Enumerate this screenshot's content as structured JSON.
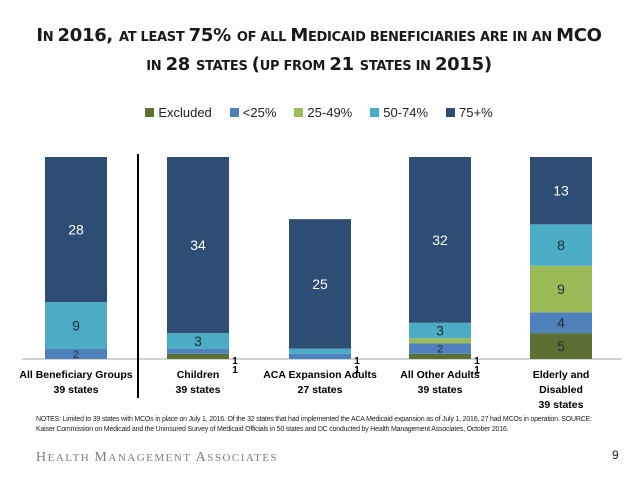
{
  "title": {
    "line1": [
      {
        "t": "I",
        "big": true
      },
      {
        "t": "N ",
        "big": false
      },
      {
        "t": "2016, ",
        "big": true
      },
      {
        "t": "AT LEAST ",
        "big": false
      },
      {
        "t": "75% ",
        "big": true
      },
      {
        "t": "OF ALL ",
        "big": false
      },
      {
        "t": "M",
        "big": true
      },
      {
        "t": "EDICAID BENEFICIARIES ARE IN AN ",
        "big": false
      },
      {
        "t": "MCO",
        "big": true
      }
    ],
    "line2": [
      {
        "t": "IN ",
        "big": false
      },
      {
        "t": "28 ",
        "big": true
      },
      {
        "t": "STATES ",
        "big": false
      },
      {
        "t": "(",
        "big": true
      },
      {
        "t": "UP FROM ",
        "big": false
      },
      {
        "t": "21 ",
        "big": true
      },
      {
        "t": "STATES IN ",
        "big": false
      },
      {
        "t": "2015)",
        "big": true
      }
    ]
  },
  "chart_data": {
    "type": "bar",
    "stacked": true,
    "title": "In 2016, at least 75% of all Medicaid beneficiaries are in an MCO in 28 states (up from 21 states in 2015)",
    "xlabel": "",
    "ylabel": "",
    "legend_position": "top-center",
    "grid": false,
    "categories": [
      {
        "line1": "All Beneficiary Groups",
        "line2": "39 states",
        "line3": ""
      },
      {
        "line1": "Children",
        "line2": "39 states",
        "line3": ""
      },
      {
        "line1": "ACA Expansion Adults",
        "line2": "27 states",
        "line3": ""
      },
      {
        "line1": "All Other Adults",
        "line2": "39 states",
        "line3": ""
      },
      {
        "line1": "Elderly and",
        "line2": "Disabled",
        "line3": "39 states"
      }
    ],
    "ylim": [
      0,
      39
    ],
    "series": [
      {
        "name": "Excluded",
        "color": "#5b7031",
        "values": [
          0,
          1,
          0,
          1,
          5
        ]
      },
      {
        "name": "<25%",
        "color": "#4f81bd",
        "values": [
          2,
          1,
          1,
          2,
          4
        ]
      },
      {
        "name": "25-49%",
        "color": "#9bbb59",
        "values": [
          0,
          0,
          0,
          1,
          9
        ]
      },
      {
        "name": "50-74%",
        "color": "#4bacc6",
        "values": [
          9,
          3,
          1,
          3,
          8
        ]
      },
      {
        "name": "75+%",
        "color": "#2e4d74",
        "values": [
          28,
          34,
          25,
          32,
          13
        ]
      }
    ],
    "group_divider_after_category": 0
  },
  "notes": "NOTES: Limited to 39 states with MCOs in place on July 1, 2016. Of the 32 states that had implemented the ACA Medicaid expansion as of July 1, 2016, 27 had MCOs in operation.  SOURCE: Kaiser Commission on Medicaid and the Uninsured Survey of Medicaid Officials in 50 states and DC conducted by Health Management Associates, October 2016.",
  "footer": {
    "brand": [
      {
        "t": "H",
        "big": true
      },
      {
        "t": "EALTH ",
        "big": false
      },
      {
        "t": "M",
        "big": true
      },
      {
        "t": "ANAGEMENT ",
        "big": false
      },
      {
        "t": "A",
        "big": true
      },
      {
        "t": "SSOCIATES",
        "big": false
      }
    ],
    "page_number": "9"
  }
}
